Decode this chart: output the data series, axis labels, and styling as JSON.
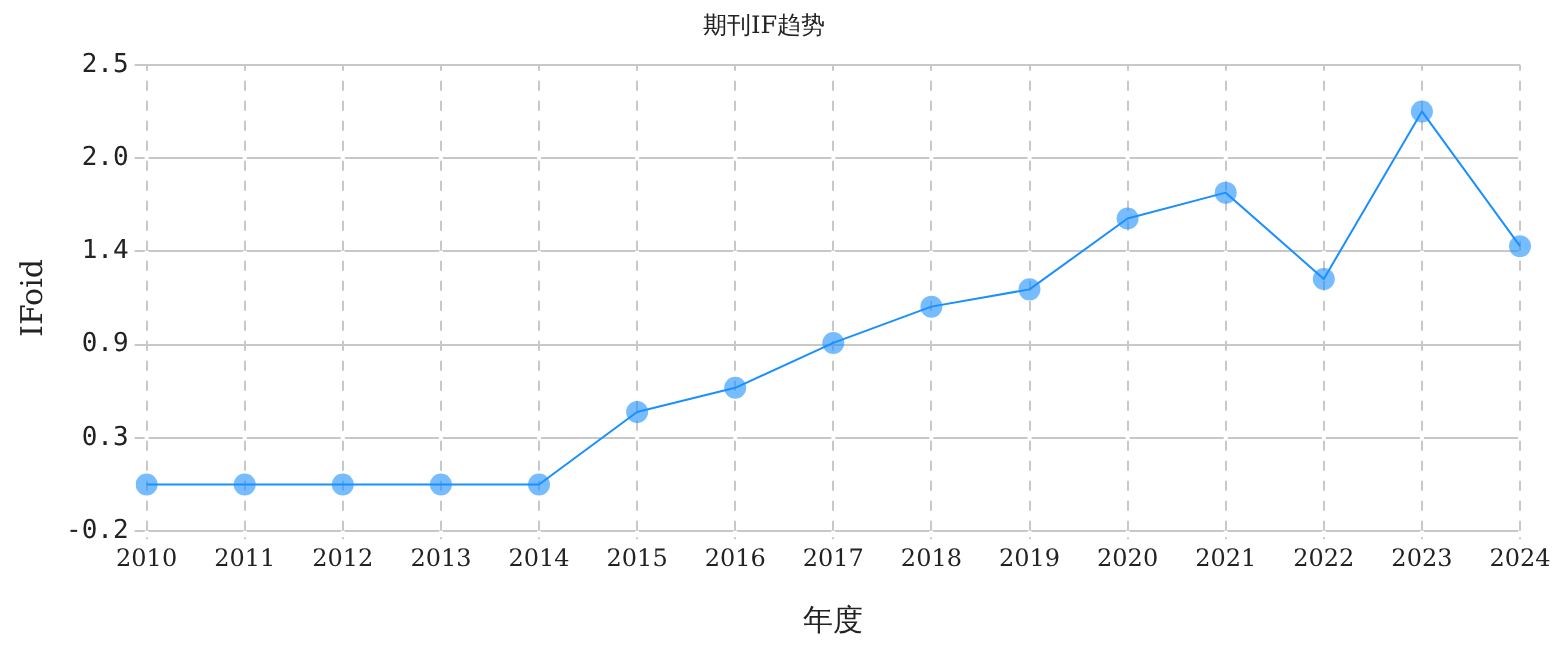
{
  "chart_data": {
    "type": "line",
    "title": "期刊IF趋势",
    "xlabel": "年度",
    "ylabel": "IFoid",
    "categories": [
      "2010",
      "2011",
      "2012",
      "2013",
      "2014",
      "2015",
      "2016",
      "2017",
      "2018",
      "2019",
      "2020",
      "2021",
      "2022",
      "2023",
      "2024"
    ],
    "series": [
      {
        "color": "#1a8fff",
        "values": [
          0.07,
          0.07,
          0.07,
          0.07,
          0.07,
          0.49,
          0.63,
          0.89,
          1.1,
          1.2,
          1.61,
          1.76,
          1.26,
          2.23,
          1.45
        ]
      }
    ],
    "ylim": [
      -0.2,
      2.5
    ],
    "yticks": [
      -0.2,
      {
        "value": 0.34,
        "label": "0.3"
      },
      {
        "value": 0.88,
        "label": "0.9"
      },
      {
        "value": 1.42,
        "label": "1.4"
      },
      {
        "value": 1.96,
        "label": "2.0"
      },
      2.5
    ],
    "grid": true,
    "legend": false,
    "marker": "circle",
    "line_style": "solid"
  }
}
